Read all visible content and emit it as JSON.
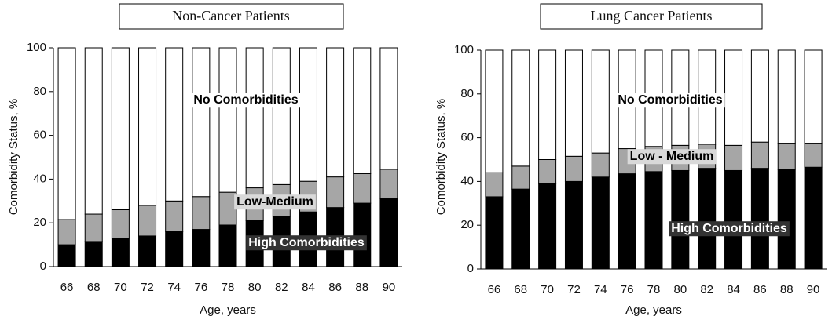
{
  "chart_data": [
    {
      "type": "bar",
      "stacked": true,
      "title": "Non-Cancer Patients",
      "xlabel": "Age, years",
      "ylabel": "Comorbidity Status, %",
      "categories": [
        "66",
        "68",
        "70",
        "72",
        "74",
        "76",
        "78",
        "80",
        "82",
        "84",
        "86",
        "88",
        "90"
      ],
      "series": [
        {
          "name": "High Comorbidities",
          "color": "#000000",
          "values": [
            10,
            11.5,
            13,
            14,
            16,
            17,
            19,
            21,
            23,
            25,
            27,
            29,
            31
          ]
        },
        {
          "name": "Low-Medium",
          "color": "#a6a6a6",
          "values": [
            11.5,
            12.5,
            13,
            14,
            14,
            15,
            15,
            15,
            14.5,
            14,
            14,
            13.5,
            13.5
          ]
        },
        {
          "name": "No Comorbidities",
          "color": "#ffffff",
          "values": [
            78.5,
            76,
            74,
            72,
            70,
            68,
            66,
            64,
            62.5,
            61,
            59,
            57.5,
            55.5
          ]
        }
      ],
      "ylim": [
        0,
        100
      ],
      "yticks": [
        0,
        20,
        40,
        60,
        80,
        100
      ]
    },
    {
      "type": "bar",
      "stacked": true,
      "title": "Lung Cancer Patients",
      "xlabel": "Age, years",
      "ylabel": "Comorbidity Status, %",
      "categories": [
        "66",
        "68",
        "70",
        "72",
        "74",
        "76",
        "78",
        "80",
        "82",
        "84",
        "86",
        "88",
        "90"
      ],
      "series": [
        {
          "name": "High Comorbidities",
          "color": "#000000",
          "values": [
            33,
            36.5,
            39,
            40,
            42,
            43.5,
            44.5,
            45,
            46,
            45,
            46,
            45.5,
            46.5
          ]
        },
        {
          "name": "Low - Medium",
          "color": "#a6a6a6",
          "values": [
            11,
            10.5,
            11,
            11.5,
            11,
            11.5,
            11.5,
            11.5,
            11,
            11.5,
            12,
            12,
            11
          ]
        },
        {
          "name": "No Comorbidities",
          "color": "#ffffff",
          "values": [
            56,
            53,
            50,
            48.5,
            47,
            45,
            44,
            43.5,
            43,
            43.5,
            42,
            42.5,
            42.5
          ]
        }
      ],
      "ylim": [
        0,
        100
      ],
      "yticks": [
        0,
        20,
        40,
        60,
        80,
        100
      ]
    }
  ]
}
